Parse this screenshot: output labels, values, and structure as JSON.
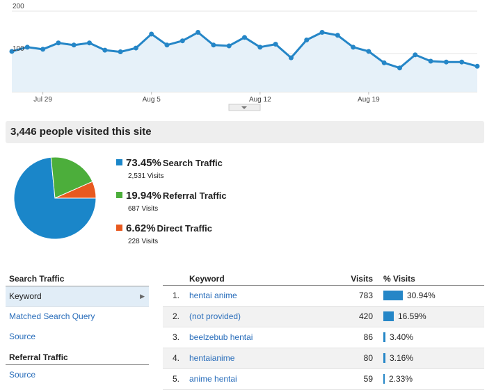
{
  "chart_data": {
    "type": "area",
    "y_ticks": [
      "200",
      "100"
    ],
    "ylim": [
      0,
      200
    ],
    "x_tick_labels": [
      "Jul 29",
      "Aug 5",
      "Aug 12",
      "Aug 19"
    ],
    "x_tick_indices": [
      2,
      9,
      16,
      23
    ],
    "series": [
      {
        "values": [
          105,
          115,
          110,
          125,
          120,
          125,
          108,
          104,
          113,
          146,
          120,
          130,
          150,
          120,
          118,
          138,
          115,
          122,
          90,
          132,
          150,
          143,
          115,
          105,
          78,
          66,
          97,
          82,
          80,
          80,
          70
        ]
      }
    ],
    "colors": {
      "line": "#2586c7",
      "fill": "#e6f1f9"
    }
  },
  "summary": {
    "title": "3,446 people visited this site"
  },
  "traffic": [
    {
      "pct": "73.45%",
      "name": "Search Traffic",
      "visits": "2,531 Visits",
      "color": "#1a86c9",
      "share": 73.45
    },
    {
      "pct": "19.94%",
      "name": "Referral Traffic",
      "visits": "687 Visits",
      "color": "#4cae3b",
      "share": 19.94
    },
    {
      "pct": "6.62%",
      "name": "Direct Traffic",
      "visits": "228 Visits",
      "color": "#e8591f",
      "share": 6.62
    }
  ],
  "nav": {
    "search_header": "Search Traffic",
    "keyword": "Keyword",
    "matched": "Matched Search Query",
    "source": "Source",
    "referral_header": "Referral Traffic",
    "ref_source": "Source"
  },
  "table": {
    "headers": {
      "keyword": "Keyword",
      "visits": "Visits",
      "pct": "% Visits"
    },
    "rows": [
      {
        "n": "1.",
        "kw": "hentai anime",
        "visits": "783",
        "pct": "30.94%",
        "share": 30.94
      },
      {
        "n": "2.",
        "kw": "(not provided)",
        "visits": "420",
        "pct": "16.59%",
        "share": 16.59
      },
      {
        "n": "3.",
        "kw": "beelzebub hentai",
        "visits": "86",
        "pct": "3.40%",
        "share": 3.4
      },
      {
        "n": "4.",
        "kw": "hentaianime",
        "visits": "80",
        "pct": "3.16%",
        "share": 3.16
      },
      {
        "n": "5.",
        "kw": "anime hentai",
        "visits": "59",
        "pct": "2.33%",
        "share": 2.33
      }
    ]
  }
}
